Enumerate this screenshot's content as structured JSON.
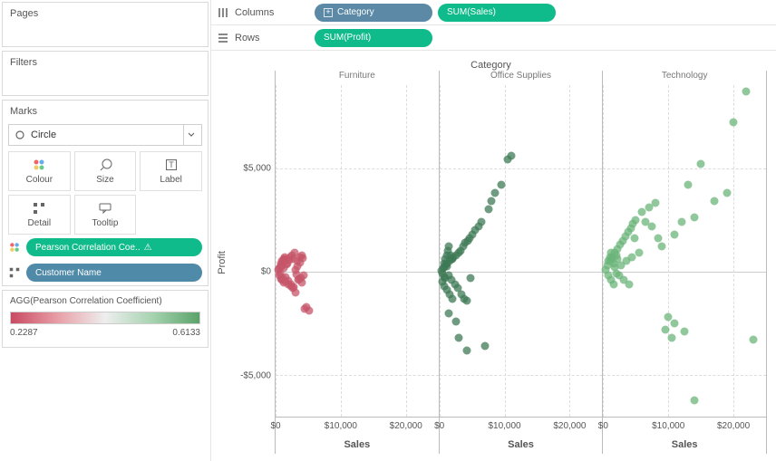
{
  "sidebar": {
    "pages_title": "Pages",
    "filters_title": "Filters",
    "marks_title": "Marks",
    "mark_type": "Circle",
    "buttons": {
      "colour": "Colour",
      "size": "Size",
      "label": "Label",
      "detail": "Detail",
      "tooltip": "Tooltip"
    },
    "pill_colour": "Pearson Correlation Coe..",
    "pill_detail": "Customer Name",
    "legend_title": "AGG(Pearson Correlation Coefficient)",
    "legend_min": "0.2287",
    "legend_max": "0.6133",
    "gradient_colors": [
      "#c94a63",
      "#e89fa7",
      "#eeeeee",
      "#a6d3b0",
      "#5aa36a"
    ]
  },
  "shelves": {
    "columns_label": "Columns",
    "rows_label": "Rows",
    "col_pill1": "Category",
    "col_pill2": "SUM(Sales)",
    "row_pill1": "SUM(Profit)"
  },
  "chart": {
    "header_title": "Category",
    "y_label": "Profit",
    "y_ticks": [
      {
        "label": "$5,000",
        "value": 5000
      },
      {
        "label": "$0",
        "value": 0
      },
      {
        "label": "-$5,000",
        "value": -5000
      }
    ],
    "y_min": -7000,
    "y_max": 9000,
    "x_ticks": [
      {
        "label": "$0",
        "value": 0
      },
      {
        "label": "$10,000",
        "value": 10000
      },
      {
        "label": "$20,000",
        "value": 20000
      }
    ],
    "x_min": 0,
    "x_max": 25000,
    "x_label": "Sales",
    "facets": [
      {
        "name": "Furniture",
        "color_main": "#c6566a",
        "points": [
          [
            400,
            100
          ],
          [
            600,
            -200
          ],
          [
            800,
            300
          ],
          [
            1000,
            -400
          ],
          [
            1200,
            500
          ],
          [
            900,
            200
          ],
          [
            1100,
            -300
          ],
          [
            1400,
            600
          ],
          [
            1600,
            -500
          ],
          [
            1800,
            400
          ],
          [
            2000,
            -600
          ],
          [
            2200,
            700
          ],
          [
            700,
            -100
          ],
          [
            1300,
            150
          ],
          [
            1500,
            -250
          ],
          [
            1700,
            350
          ],
          [
            1900,
            -450
          ],
          [
            2100,
            550
          ],
          [
            2300,
            -700
          ],
          [
            2500,
            800
          ],
          [
            2700,
            -800
          ],
          [
            2900,
            900
          ],
          [
            3100,
            -1000
          ],
          [
            3300,
            500
          ],
          [
            3500,
            -400
          ],
          [
            3700,
            700
          ],
          [
            3900,
            -300
          ],
          [
            4100,
            800
          ],
          [
            4300,
            -200
          ],
          [
            3000,
            100
          ],
          [
            3200,
            -150
          ],
          [
            3400,
            250
          ],
          [
            3600,
            -350
          ],
          [
            3800,
            450
          ],
          [
            4000,
            -550
          ],
          [
            4200,
            650
          ],
          [
            2800,
            -750
          ],
          [
            2600,
            600
          ],
          [
            2400,
            -600
          ],
          [
            4500,
            -1800
          ],
          [
            4700,
            -1700
          ],
          [
            5200,
            -1900
          ],
          [
            800,
            400
          ],
          [
            1000,
            500
          ],
          [
            1200,
            600
          ],
          [
            1400,
            700
          ],
          [
            600,
            150
          ],
          [
            900,
            -350
          ],
          [
            1100,
            450
          ],
          [
            1300,
            -550
          ]
        ]
      },
      {
        "name": "Office Supplies",
        "color_main": "#3f7a55",
        "points": [
          [
            300,
            50
          ],
          [
            500,
            -100
          ],
          [
            700,
            200
          ],
          [
            900,
            -300
          ],
          [
            1100,
            400
          ],
          [
            600,
            150
          ],
          [
            800,
            -250
          ],
          [
            1000,
            350
          ],
          [
            1200,
            250
          ],
          [
            1400,
            -200
          ],
          [
            1600,
            500
          ],
          [
            1800,
            -400
          ],
          [
            2000,
            600
          ],
          [
            2200,
            700
          ],
          [
            2400,
            -600
          ],
          [
            2600,
            800
          ],
          [
            2800,
            -800
          ],
          [
            3000,
            900
          ],
          [
            3200,
            1000
          ],
          [
            3400,
            -1100
          ],
          [
            3600,
            1200
          ],
          [
            3800,
            -1300
          ],
          [
            4000,
            1400
          ],
          [
            4200,
            -1400
          ],
          [
            4400,
            1500
          ],
          [
            4600,
            1600
          ],
          [
            4800,
            -300
          ],
          [
            5000,
            1800
          ],
          [
            5500,
            2000
          ],
          [
            6000,
            2200
          ],
          [
            6500,
            2400
          ],
          [
            7000,
            -3600
          ],
          [
            3000,
            -3200
          ],
          [
            4200,
            -3800
          ],
          [
            7500,
            3000
          ],
          [
            8000,
            3400
          ],
          [
            8500,
            3800
          ],
          [
            9500,
            4200
          ],
          [
            10500,
            5400
          ],
          [
            11000,
            5600
          ],
          [
            1500,
            -2000
          ],
          [
            2500,
            -2400
          ],
          [
            700,
            400
          ],
          [
            900,
            600
          ],
          [
            1100,
            800
          ],
          [
            1300,
            1000
          ],
          [
            1500,
            1200
          ],
          [
            1700,
            800
          ],
          [
            1900,
            600
          ],
          [
            500,
            -500
          ],
          [
            800,
            -700
          ],
          [
            1200,
            -900
          ],
          [
            1600,
            -1100
          ],
          [
            2000,
            -1300
          ]
        ]
      },
      {
        "name": "Technology",
        "color_main": "#6bb47a",
        "points": [
          [
            400,
            100
          ],
          [
            600,
            300
          ],
          [
            800,
            -200
          ],
          [
            1000,
            500
          ],
          [
            1200,
            -400
          ],
          [
            1400,
            700
          ],
          [
            1600,
            -600
          ],
          [
            1800,
            900
          ],
          [
            2000,
            -100
          ],
          [
            2200,
            1100
          ],
          [
            2400,
            -200
          ],
          [
            2600,
            1300
          ],
          [
            2800,
            300
          ],
          [
            3000,
            1500
          ],
          [
            3200,
            -400
          ],
          [
            3400,
            1700
          ],
          [
            3600,
            500
          ],
          [
            3800,
            1900
          ],
          [
            4000,
            -600
          ],
          [
            4200,
            2100
          ],
          [
            4400,
            700
          ],
          [
            4600,
            2300
          ],
          [
            4800,
            1600
          ],
          [
            5000,
            2500
          ],
          [
            5500,
            900
          ],
          [
            6000,
            2900
          ],
          [
            6500,
            2400
          ],
          [
            7000,
            3100
          ],
          [
            7500,
            2200
          ],
          [
            8000,
            3300
          ],
          [
            8500,
            1600
          ],
          [
            9000,
            1200
          ],
          [
            9500,
            -2800
          ],
          [
            10000,
            -2200
          ],
          [
            10500,
            -3200
          ],
          [
            11000,
            1800
          ],
          [
            12000,
            2400
          ],
          [
            13000,
            4200
          ],
          [
            14000,
            2600
          ],
          [
            15000,
            5200
          ],
          [
            17000,
            3400
          ],
          [
            19000,
            3800
          ],
          [
            14000,
            -6200
          ],
          [
            20000,
            7200
          ],
          [
            22000,
            8700
          ],
          [
            23000,
            -3300
          ],
          [
            800,
            500
          ],
          [
            1000,
            700
          ],
          [
            1200,
            900
          ],
          [
            1400,
            600
          ],
          [
            1600,
            400
          ],
          [
            1800,
            200
          ],
          [
            2000,
            800
          ],
          [
            2200,
            600
          ],
          [
            11000,
            -2500
          ],
          [
            12500,
            -2900
          ]
        ]
      }
    ]
  }
}
